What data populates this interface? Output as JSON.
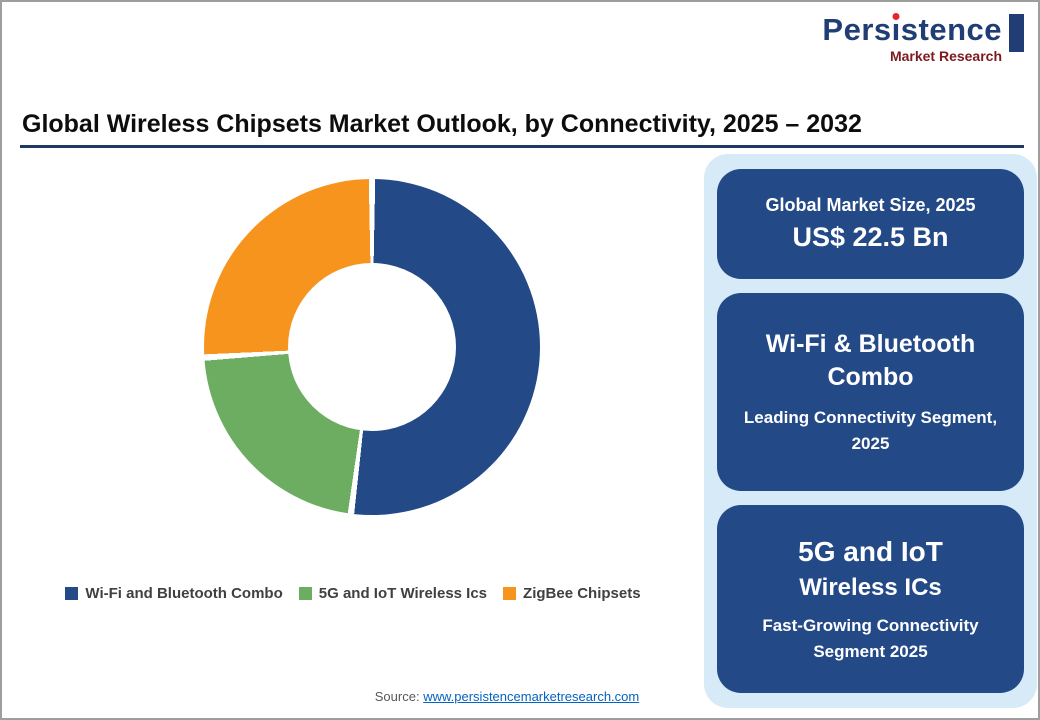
{
  "logo": {
    "brand_part1": "Pers",
    "brand_i": "ı",
    "brand_part2": "stence",
    "brand_sub": "Market Research"
  },
  "header": {
    "title": "Global Wireless Chipsets Market Outlook, by Connectivity, 2025 – 2032"
  },
  "chart_data": {
    "type": "pie",
    "donut": true,
    "title": "Global Wireless Chipsets Market Outlook, by Connectivity, 2025 – 2032",
    "categories": [
      "Wi-Fi and Bluetooth Combo",
      "5G and IoT Wireless Ics",
      "ZigBee Chipsets"
    ],
    "values": [
      52,
      22,
      26
    ],
    "values_unit": "percent share (estimated from arc angles; no numeric labels shown)",
    "colors": [
      "#234a87",
      "#6cad62",
      "#f6941e"
    ],
    "start_angle_deg": 0,
    "direction": "clockwise",
    "legend_position": "bottom"
  },
  "legend": {
    "items": [
      {
        "label": "Wi-Fi and Bluetooth Combo"
      },
      {
        "label": "5G and IoT Wireless Ics"
      },
      {
        "label": "ZigBee Chipsets"
      }
    ]
  },
  "panel": {
    "cards": [
      {
        "line1": "Global Market Size, 2025",
        "line2": "US$ 22.5 Bn"
      },
      {
        "line1": "Wi-Fi & Bluetooth Combo",
        "line2": "Leading Connectivity Segment, 2025"
      },
      {
        "line1": "5G and IoT",
        "line2": "Wireless ICs",
        "line3": "Fast-Growing Connectivity Segment 2025"
      }
    ]
  },
  "footer": {
    "source_label": "Source:",
    "source_link": "www.persistencemarketresearch.com"
  }
}
